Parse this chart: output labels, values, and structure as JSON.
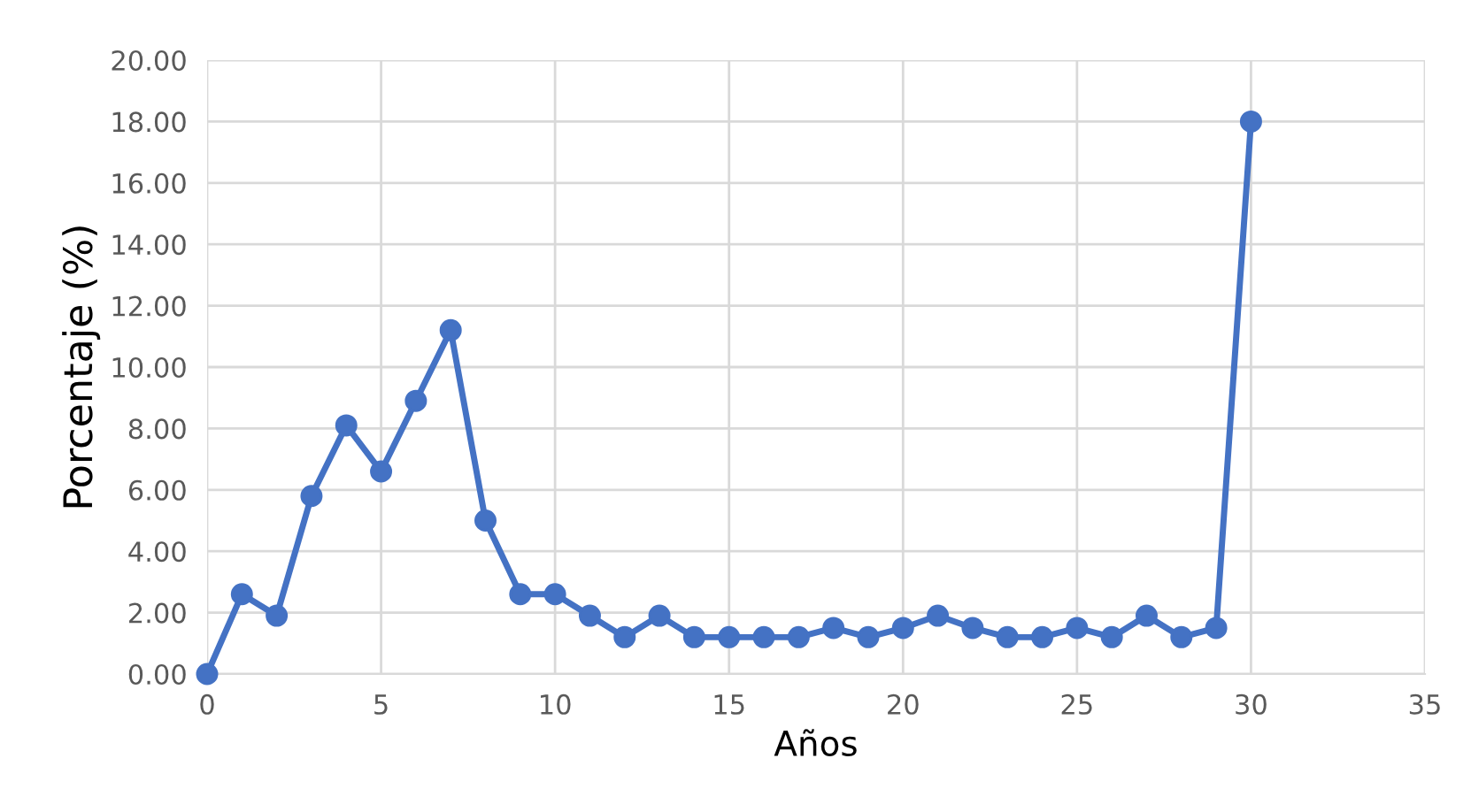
{
  "chart_data": {
    "type": "line",
    "xlabel": "Años",
    "ylabel": "Porcentaje (%)",
    "x": [
      0,
      1,
      2,
      3,
      4,
      5,
      6,
      7,
      8,
      9,
      10,
      11,
      12,
      13,
      14,
      15,
      16,
      17,
      18,
      19,
      20,
      21,
      22,
      23,
      24,
      25,
      26,
      27,
      28,
      29,
      30
    ],
    "series": [
      {
        "color": "#4472c4",
        "values": [
          0,
          2.6,
          1.9,
          5.8,
          8.1,
          6.6,
          8.9,
          11.2,
          5.0,
          2.6,
          2.6,
          1.9,
          1.2,
          1.9,
          1.2,
          1.2,
          1.2,
          1.2,
          1.5,
          1.2,
          1.5,
          1.9,
          1.5,
          1.2,
          1.2,
          1.5,
          1.2,
          1.9,
          1.2,
          1.5,
          18.0
        ]
      }
    ],
    "xlim": [
      0,
      35
    ],
    "xticks": [
      0,
      5,
      10,
      15,
      20,
      25,
      30,
      35
    ],
    "ylim": [
      0,
      20
    ],
    "yticks": [
      {
        "value": 0,
        "label": "0.00"
      },
      {
        "value": 2,
        "label": "2.00"
      },
      {
        "value": 4,
        "label": "4.00"
      },
      {
        "value": 6,
        "label": "6.00"
      },
      {
        "value": 8,
        "label": "8.00"
      },
      {
        "value": 10,
        "label": "10.00"
      },
      {
        "value": 12,
        "label": "12.00"
      },
      {
        "value": 14,
        "label": "14.00"
      },
      {
        "value": 16,
        "label": "16.00"
      },
      {
        "value": 18,
        "label": "18.00"
      },
      {
        "value": 20,
        "label": "20.00"
      }
    ],
    "grid": true,
    "marker": "circle",
    "line_style": "solid"
  }
}
